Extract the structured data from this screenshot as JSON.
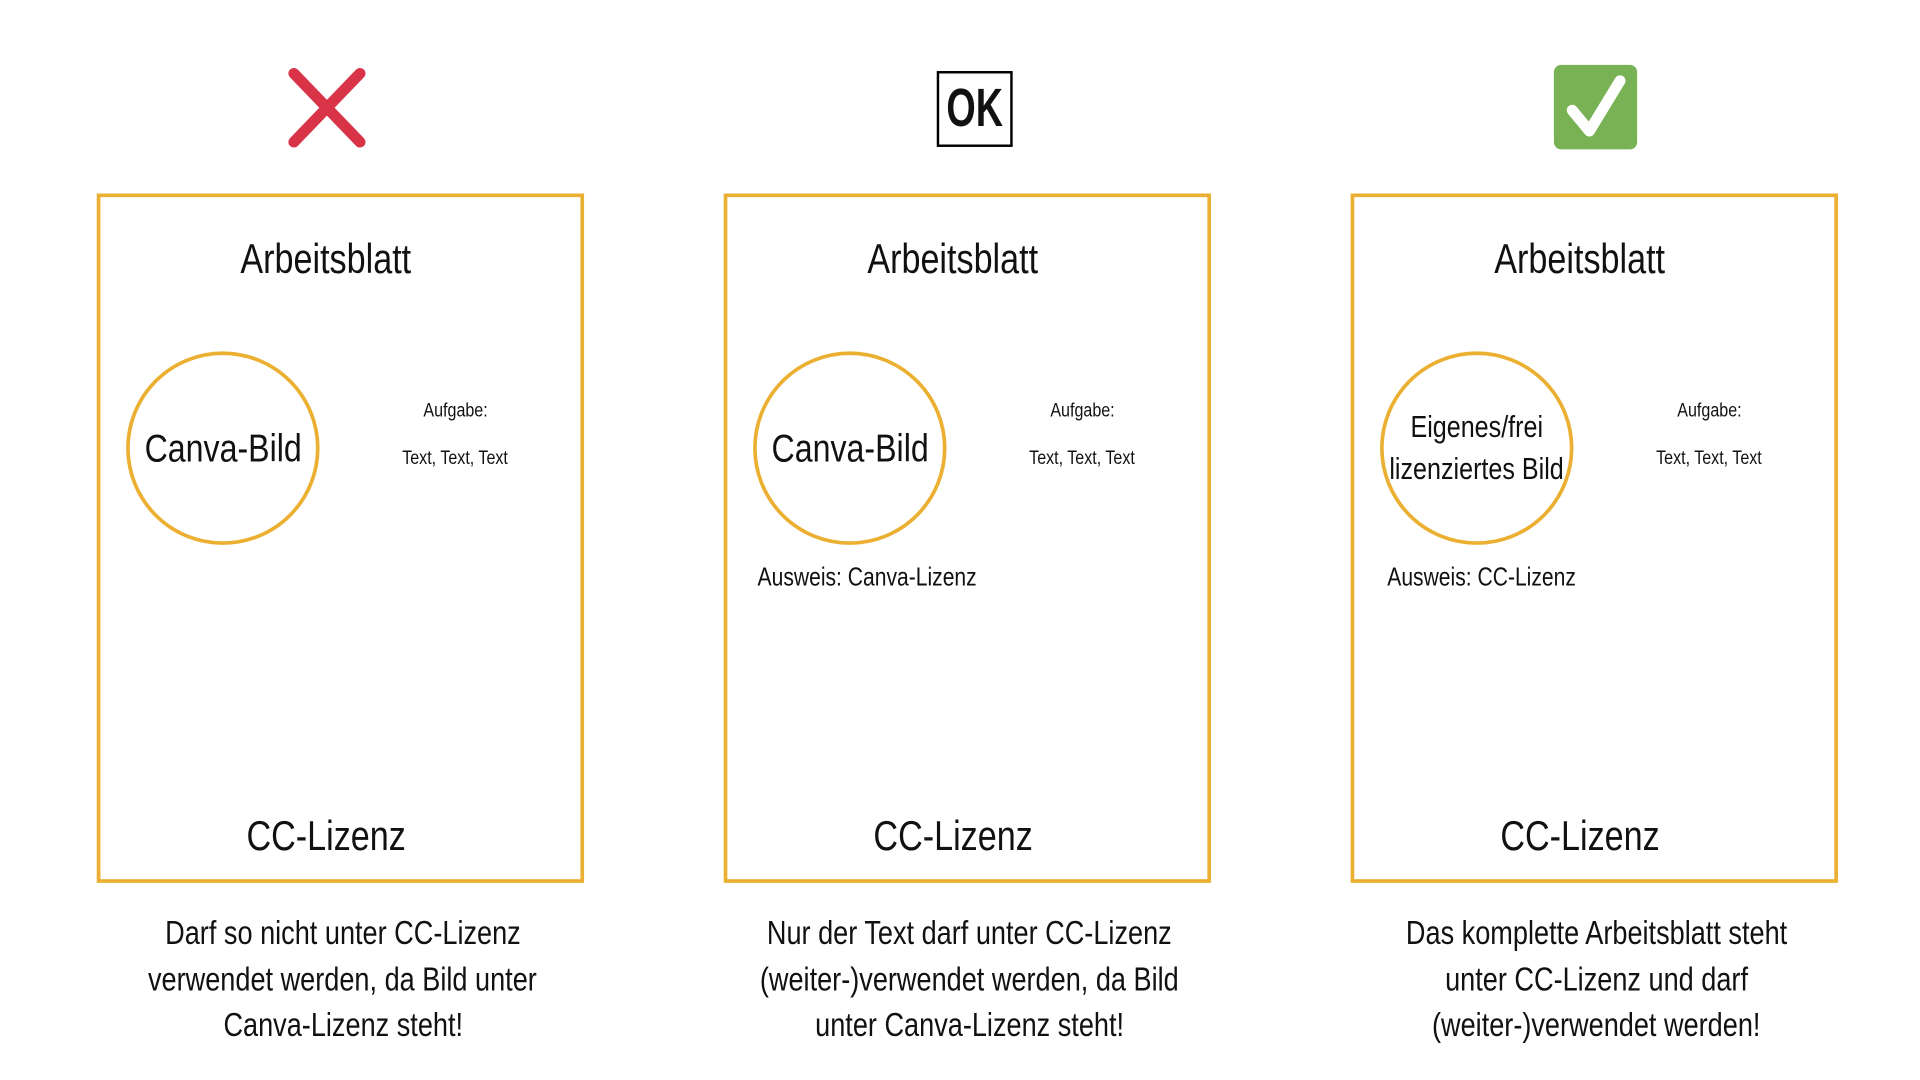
{
  "columns": [
    {
      "icon": "red-x-icon",
      "sheet_title": "Arbeitsblatt",
      "image_label": "Canva-Bild",
      "task_label": "Aufgabe:",
      "task_text": "Text, Text, Text",
      "source": "",
      "license": "CC-Lizenz",
      "caption": [
        "Darf so nicht unter CC-Lizenz",
        "verwendet werden, da Bild unter",
        "Canva-Lizenz steht!"
      ]
    },
    {
      "icon": "ok-box-icon",
      "icon_text": "OK",
      "sheet_title": "Arbeitsblatt",
      "image_label": "Canva-Bild",
      "task_label": "Aufgabe:",
      "task_text": "Text, Text, Text",
      "source": "Ausweis: Canva-Lizenz",
      "license": "CC-Lizenz",
      "caption": [
        "Nur der Text darf unter CC-Lizenz",
        "(weiter-)verwendet werden, da Bild",
        "unter Canva-Lizenz steht!"
      ]
    },
    {
      "icon": "green-check-icon",
      "sheet_title": "Arbeitsblatt",
      "image_label_lines": [
        "Eigenes/frei",
        "lizenziertes Bild"
      ],
      "task_label": "Aufgabe:",
      "task_text": "Text, Text, Text",
      "source": "Ausweis: CC-Lizenz",
      "license": "CC-Lizenz",
      "caption": [
        "Das komplette Arbeitsblatt steht",
        "unter CC-Lizenz und darf",
        "(weiter-)verwendet werden!"
      ]
    }
  ],
  "colors": {
    "frame": "#EBB032",
    "cross": "#D93348",
    "check_bg": "#78B254"
  }
}
